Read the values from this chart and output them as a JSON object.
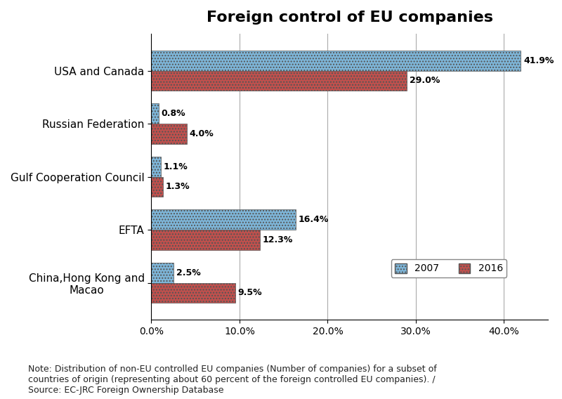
{
  "title": "Foreign control of EU companies",
  "categories": [
    "China,Hong Kong and\nMacao",
    "EFTA",
    "Gulf Cooperation Council",
    "Russian Federation",
    "USA and Canada"
  ],
  "values_2007": [
    2.5,
    16.4,
    1.1,
    0.8,
    41.9
  ],
  "values_2016": [
    9.5,
    12.3,
    1.3,
    4.0,
    29.0
  ],
  "labels_2007": [
    "2.5%",
    "16.4%",
    "1.1%",
    "0.8%",
    "41.9%"
  ],
  "labels_2016": [
    "9.5%",
    "12.3%",
    "1.3%",
    "4.0%",
    "29.0%"
  ],
  "color_2007": "#7EB6D9",
  "color_2016": "#C0504D",
  "hatch_2007": "....",
  "hatch_2016": "....",
  "bar_height": 0.38,
  "xlim": [
    0,
    45
  ],
  "xticks": [
    0,
    10,
    20,
    30,
    40
  ],
  "xticklabels": [
    "0.0%",
    "10.0%",
    "20.0%",
    "30.0%",
    "40.0%"
  ],
  "note": "Note: Distribution of non-EU controlled EU companies (Number of companies) for a subset of\ncountries of origin (representing about 60 percent of the foreign controlled EU companies). /\nSource: EC-JRC Foreign Ownership Database",
  "legend_2007": "2007",
  "legend_2016": "2016",
  "title_fontsize": 16,
  "label_fontsize": 9,
  "tick_fontsize": 10,
  "note_fontsize": 9,
  "fig_width": 8.0,
  "fig_height": 5.68
}
